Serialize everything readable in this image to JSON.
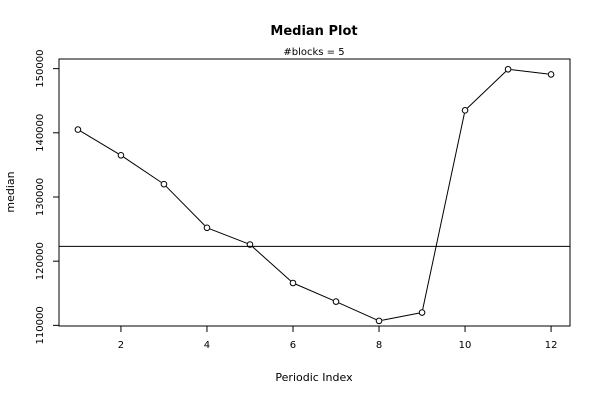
{
  "chart_data": {
    "type": "line",
    "title": "Median Plot",
    "subtitle": "#blocks =  5",
    "xlabel": "Periodic Index",
    "ylabel": "median",
    "x": [
      1,
      2,
      3,
      4,
      5,
      6,
      7,
      8,
      9,
      10,
      11,
      12
    ],
    "series": [
      {
        "values": [
          140500,
          136500,
          132000,
          125200,
          122600,
          116600,
          113700,
          110700,
          112000,
          143500,
          149900,
          149100
        ]
      }
    ],
    "reference_line": 122300,
    "xticks": [
      2,
      4,
      6,
      8,
      10,
      12
    ],
    "yticks": [
      110000,
      120000,
      130000,
      140000,
      150000
    ],
    "xlim": [
      0.56,
      12.44
    ],
    "ylim": [
      109900,
      151500
    ],
    "grid": false,
    "legend": "none",
    "line_color": "#000000",
    "marker": "open-circle"
  }
}
